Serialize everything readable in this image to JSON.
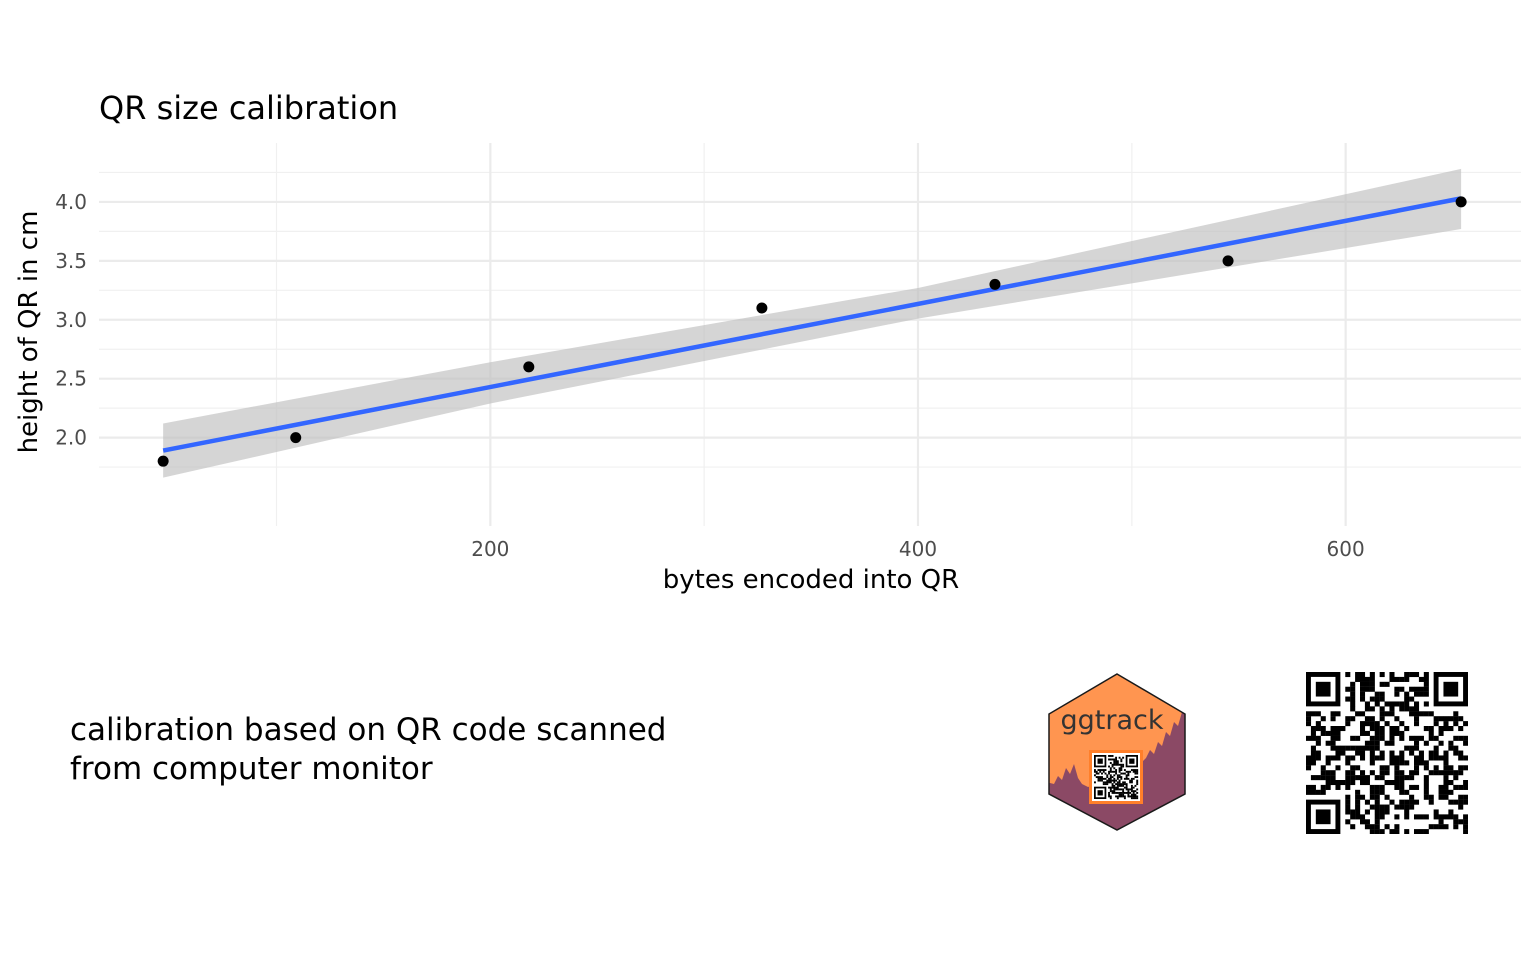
{
  "chart_data": {
    "type": "scatter",
    "title": "QR size calibration",
    "xlabel": "bytes encoded into QR",
    "ylabel": "height of QR in cm",
    "xlim": [
      17,
      682
    ],
    "ylim": [
      1.25,
      4.5
    ],
    "x_ticks": [
      200,
      400,
      600
    ],
    "x_tick_labels": [
      "200",
      "400",
      "600"
    ],
    "y_ticks": [
      2.0,
      2.5,
      3.0,
      3.5,
      4.0
    ],
    "y_tick_labels": [
      "2.0",
      "2.5",
      "3.0",
      "3.5",
      "4.0"
    ],
    "grid": true,
    "points": [
      {
        "x": 47,
        "y": 1.8
      },
      {
        "x": 109,
        "y": 2.0
      },
      {
        "x": 218,
        "y": 2.6
      },
      {
        "x": 327,
        "y": 3.1
      },
      {
        "x": 436,
        "y": 3.3
      },
      {
        "x": 545,
        "y": 3.5
      },
      {
        "x": 654,
        "y": 4.0
      }
    ],
    "fit_line": {
      "method": "linear",
      "x": [
        47,
        654
      ],
      "y": [
        1.89,
        4.03
      ],
      "color": "#3366ff"
    },
    "confidence_band": {
      "color": "#bfbfbf",
      "x": [
        47,
        200,
        400,
        654
      ],
      "lower": [
        1.66,
        2.29,
        3.01,
        3.77
      ],
      "upper": [
        2.12,
        2.64,
        3.27,
        4.28
      ]
    }
  },
  "caption": {
    "line1": "calibration based on QR code scanned",
    "line2": "from computer monitor"
  },
  "logo": {
    "text": "ggtrack",
    "fill": "#ff9550",
    "mountain_color": "#8b4965"
  },
  "qr_code": {
    "icon": "qr-code-icon",
    "color": "#000000"
  }
}
